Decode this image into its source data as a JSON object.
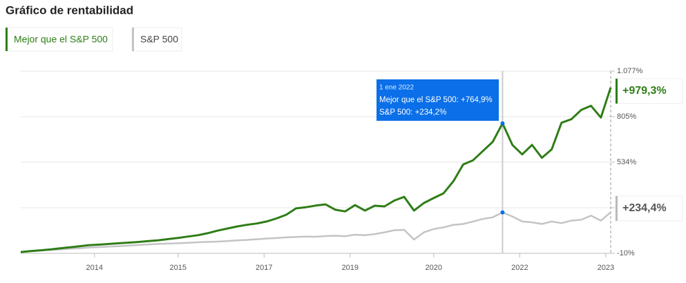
{
  "chart_data": {
    "type": "line",
    "title": "Gráfico de rentabilidad",
    "x": [
      0,
      2,
      4,
      6,
      8,
      10,
      12,
      14,
      16,
      18,
      20,
      22,
      24,
      26,
      28,
      30,
      32,
      34,
      36,
      38,
      40,
      42,
      44,
      46,
      48,
      50,
      52,
      54,
      56,
      58,
      60,
      62,
      64,
      66,
      68,
      70,
      72,
      74,
      76,
      78,
      80,
      82,
      84,
      86,
      88,
      90,
      92,
      94,
      96,
      98,
      100,
      102,
      104,
      106,
      108,
      110,
      112,
      114,
      116,
      118,
      120
    ],
    "series": [
      {
        "name": "Mejor que el S&P 500",
        "color": "#2e7d16",
        "end_label": "+979,3%",
        "values": [
          -2,
          3,
          8,
          13,
          20,
          26,
          32,
          39,
          42,
          46,
          50,
          54,
          58,
          63,
          68,
          75,
          82,
          90,
          98,
          110,
          125,
          138,
          150,
          160,
          168,
          180,
          198,
          220,
          258,
          265,
          275,
          282,
          250,
          240,
          278,
          245,
          274,
          270,
          305,
          327,
          245,
          290,
          320,
          348,
          420,
          520,
          545,
          600,
          655,
          764.9,
          637,
          580,
          637,
          560,
          610,
          769,
          790,
          845,
          870,
          800,
          979.3
        ]
      },
      {
        "name": "S&P 500",
        "color": "#c4c4c4",
        "end_label": "+234,4%",
        "values": [
          -2,
          2,
          6,
          10,
          13,
          17,
          20,
          25,
          27,
          30,
          33,
          36,
          40,
          43,
          46,
          48,
          50,
          53,
          56,
          58,
          60,
          63,
          67,
          70,
          74,
          78,
          81,
          85,
          88,
          90,
          89,
          93,
          95,
          92,
          101,
          98,
          105,
          115,
          128,
          130,
          72,
          115,
          135,
          145,
          160,
          165,
          180,
          195,
          205,
          234.2,
          210,
          180,
          175,
          165,
          180,
          170,
          185,
          190,
          215,
          185,
          234.4
        ]
      }
    ],
    "xlim": [
      0,
      120
    ],
    "xticks": [
      {
        "value": 15,
        "label": "2014"
      },
      {
        "value": 32,
        "label": "2015"
      },
      {
        "value": 49.5,
        "label": "2017"
      },
      {
        "value": 67,
        "label": "2019"
      },
      {
        "value": 84,
        "label": "2020"
      },
      {
        "value": 101.5,
        "label": "2022"
      },
      {
        "value": 119,
        "label": "2023"
      }
    ],
    "ylim": [
      -10,
      1077
    ],
    "yticks": [
      {
        "value": -10,
        "label": "-10%"
      },
      {
        "value": 262,
        "label": null
      },
      {
        "value": 534,
        "label": "534%"
      },
      {
        "value": 805,
        "label": "805%"
      },
      {
        "value": 1077,
        "label": "1.077%"
      }
    ],
    "grid": true,
    "tooltip": {
      "x": 98,
      "date": "1 ene 2022",
      "lines": [
        "Mejor que el S&P 500: +764,9%",
        "S&P 500: +234,2%"
      ],
      "color": "#0a6fe8"
    }
  }
}
